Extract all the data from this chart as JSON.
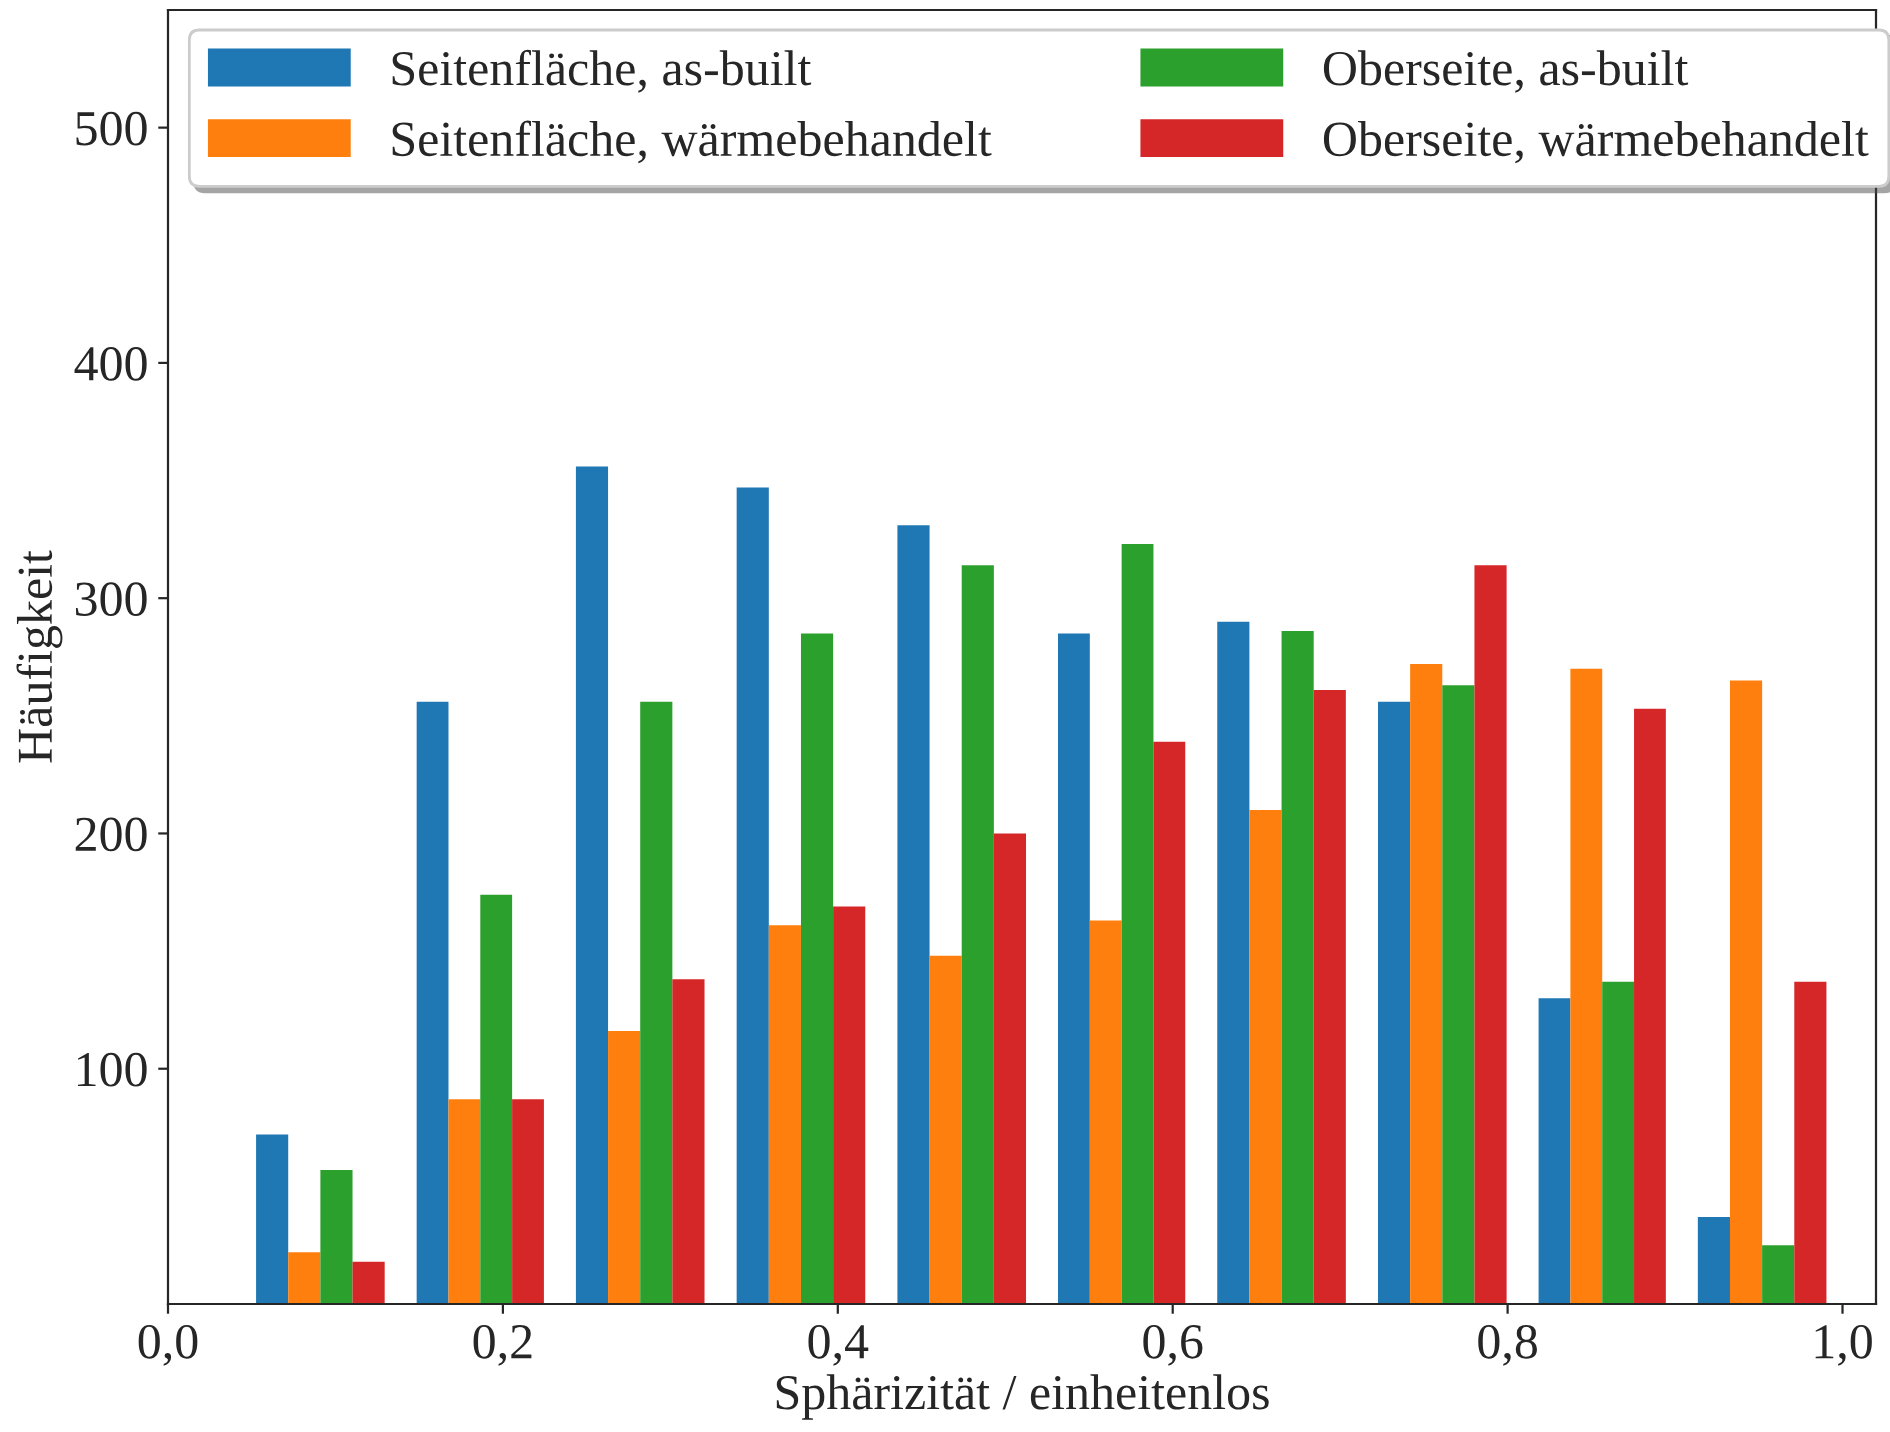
{
  "chart_data": {
    "type": "histogram",
    "xlabel": "Sphärizität / einheitenlos",
    "ylabel": "Häufigkeit",
    "bins": [
      0.043,
      0.139,
      0.234,
      0.33,
      0.426,
      0.522,
      0.617,
      0.713,
      0.809,
      0.904,
      1.0
    ],
    "series": [
      {
        "name": "Seitenfläche, as-built",
        "color": "#1f77b4",
        "values": [
          72,
          256,
          356,
          347,
          331,
          285,
          290,
          256,
          130,
          37
        ]
      },
      {
        "name": "Seitenfläche, wärmebehandelt",
        "color": "#ff7f0e",
        "values": [
          22,
          87,
          116,
          161,
          148,
          163,
          210,
          272,
          270,
          265
        ]
      },
      {
        "name": "Oberseite, as-built",
        "color": "#2ca02c",
        "values": [
          57,
          174,
          256,
          285,
          314,
          323,
          286,
          263,
          137,
          25
        ]
      },
      {
        "name": "Oberseite, wärmebehandelt",
        "color": "#d62728",
        "values": [
          18,
          87,
          138,
          169,
          200,
          239,
          261,
          314,
          253,
          137
        ]
      }
    ],
    "xlim": [
      0,
      1.02
    ],
    "ylim": [
      0,
      550
    ],
    "xticks": [
      {
        "value": 0,
        "label": "0,0"
      },
      {
        "value": 0.2,
        "label": "0,2"
      },
      {
        "value": 0.4,
        "label": "0,4"
      },
      {
        "value": 0.6,
        "label": "0,6"
      },
      {
        "value": 0.8,
        "label": "0,8"
      },
      {
        "value": 1.0,
        "label": "1,0"
      }
    ],
    "yticks": [
      100,
      200,
      300,
      400,
      500
    ],
    "grid": false,
    "legend": "top"
  }
}
